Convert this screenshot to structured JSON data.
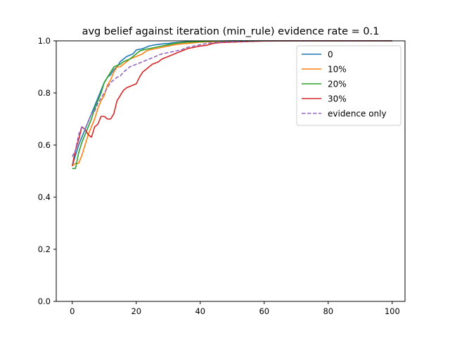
{
  "chart_data": {
    "type": "line",
    "title": "avg belief against iteration (min_rule) evidence rate = 0.1",
    "xlabel": "",
    "ylabel": "",
    "xlim": [
      -5,
      104
    ],
    "ylim": [
      0,
      1.0
    ],
    "xticks": [
      0,
      20,
      40,
      60,
      80,
      100
    ],
    "xtick_labels": [
      "0",
      "20",
      "40",
      "60",
      "80",
      "100"
    ],
    "yticks": [
      0.0,
      0.2,
      0.4,
      0.6,
      0.8,
      1.0
    ],
    "ytick_labels": [
      "0.0",
      "0.2",
      "0.4",
      "0.6",
      "0.8",
      "1.0"
    ],
    "grid": false,
    "legend_position": "upper right",
    "series": [
      {
        "name": "0",
        "color": "#1f77b4",
        "dash": "solid",
        "points": [
          [
            0,
            0.52
          ],
          [
            1,
            0.56
          ],
          [
            2,
            0.6
          ],
          [
            3,
            0.63
          ],
          [
            4,
            0.66
          ],
          [
            5,
            0.69
          ],
          [
            6,
            0.72
          ],
          [
            7,
            0.75
          ],
          [
            8,
            0.78
          ],
          [
            9,
            0.81
          ],
          [
            10,
            0.84
          ],
          [
            11,
            0.86
          ],
          [
            12,
            0.87
          ],
          [
            13,
            0.89
          ],
          [
            14,
            0.9
          ],
          [
            15,
            0.92
          ],
          [
            16,
            0.93
          ],
          [
            17,
            0.94
          ],
          [
            18,
            0.945
          ],
          [
            19,
            0.95
          ],
          [
            20,
            0.965
          ],
          [
            22,
            0.97
          ],
          [
            24,
            0.98
          ],
          [
            26,
            0.985
          ],
          [
            28,
            0.988
          ],
          [
            30,
            0.99
          ],
          [
            32,
            0.993
          ],
          [
            34,
            0.995
          ],
          [
            36,
            0.997
          ],
          [
            40,
            0.998
          ],
          [
            44,
            0.999
          ],
          [
            50,
            1.0
          ],
          [
            60,
            1.0
          ],
          [
            70,
            1.0
          ],
          [
            80,
            1.0
          ],
          [
            90,
            1.0
          ],
          [
            100,
            1.0
          ]
        ]
      },
      {
        "name": "10%",
        "color": "#ff7f0e",
        "dash": "solid",
        "points": [
          [
            0,
            0.52
          ],
          [
            1,
            0.53
          ],
          [
            2,
            0.53
          ],
          [
            3,
            0.56
          ],
          [
            4,
            0.6
          ],
          [
            5,
            0.64
          ],
          [
            6,
            0.67
          ],
          [
            7,
            0.7
          ],
          [
            8,
            0.74
          ],
          [
            9,
            0.77
          ],
          [
            10,
            0.79
          ],
          [
            11,
            0.83
          ],
          [
            12,
            0.85
          ],
          [
            13,
            0.88
          ],
          [
            14,
            0.9
          ],
          [
            15,
            0.9
          ],
          [
            16,
            0.91
          ],
          [
            17,
            0.92
          ],
          [
            18,
            0.93
          ],
          [
            19,
            0.935
          ],
          [
            20,
            0.94
          ],
          [
            21,
            0.945
          ],
          [
            22,
            0.95
          ],
          [
            23,
            0.96
          ],
          [
            24,
            0.965
          ],
          [
            26,
            0.97
          ],
          [
            28,
            0.975
          ],
          [
            30,
            0.98
          ],
          [
            32,
            0.985
          ],
          [
            34,
            0.988
          ],
          [
            36,
            0.99
          ],
          [
            40,
            0.995
          ],
          [
            44,
            0.997
          ],
          [
            50,
            0.999
          ],
          [
            60,
            1.0
          ],
          [
            70,
            1.0
          ],
          [
            80,
            1.0
          ],
          [
            90,
            1.0
          ],
          [
            100,
            1.0
          ]
        ]
      },
      {
        "name": "20%",
        "color": "#2ca02c",
        "dash": "solid",
        "points": [
          [
            0,
            0.51
          ],
          [
            1,
            0.51
          ],
          [
            2,
            0.57
          ],
          [
            3,
            0.61
          ],
          [
            4,
            0.64
          ],
          [
            5,
            0.67
          ],
          [
            6,
            0.7
          ],
          [
            7,
            0.74
          ],
          [
            8,
            0.77
          ],
          [
            9,
            0.8
          ],
          [
            10,
            0.84
          ],
          [
            11,
            0.86
          ],
          [
            12,
            0.88
          ],
          [
            13,
            0.9
          ],
          [
            14,
            0.905
          ],
          [
            15,
            0.91
          ],
          [
            16,
            0.92
          ],
          [
            17,
            0.925
          ],
          [
            18,
            0.93
          ],
          [
            19,
            0.94
          ],
          [
            20,
            0.95
          ],
          [
            21,
            0.96
          ],
          [
            22,
            0.965
          ],
          [
            24,
            0.97
          ],
          [
            26,
            0.975
          ],
          [
            28,
            0.98
          ],
          [
            30,
            0.985
          ],
          [
            32,
            0.99
          ],
          [
            34,
            0.993
          ],
          [
            36,
            0.995
          ],
          [
            40,
            0.997
          ],
          [
            44,
            0.999
          ],
          [
            50,
            1.0
          ],
          [
            60,
            1.0
          ],
          [
            70,
            1.0
          ],
          [
            80,
            1.0
          ],
          [
            90,
            1.0
          ],
          [
            100,
            1.0
          ]
        ]
      },
      {
        "name": "30%",
        "color": "#d62728",
        "dash": "solid",
        "points": [
          [
            0,
            0.52
          ],
          [
            1,
            0.58
          ],
          [
            2,
            0.62
          ],
          [
            3,
            0.67
          ],
          [
            4,
            0.66
          ],
          [
            5,
            0.64
          ],
          [
            6,
            0.63
          ],
          [
            7,
            0.67
          ],
          [
            8,
            0.68
          ],
          [
            9,
            0.71
          ],
          [
            10,
            0.71
          ],
          [
            11,
            0.7
          ],
          [
            12,
            0.7
          ],
          [
            13,
            0.72
          ],
          [
            14,
            0.77
          ],
          [
            15,
            0.79
          ],
          [
            16,
            0.81
          ],
          [
            17,
            0.82
          ],
          [
            18,
            0.825
          ],
          [
            19,
            0.83
          ],
          [
            20,
            0.835
          ],
          [
            21,
            0.86
          ],
          [
            22,
            0.88
          ],
          [
            23,
            0.89
          ],
          [
            24,
            0.9
          ],
          [
            25,
            0.91
          ],
          [
            26,
            0.915
          ],
          [
            27,
            0.92
          ],
          [
            28,
            0.93
          ],
          [
            29,
            0.935
          ],
          [
            30,
            0.94
          ],
          [
            32,
            0.95
          ],
          [
            34,
            0.96
          ],
          [
            36,
            0.97
          ],
          [
            38,
            0.975
          ],
          [
            40,
            0.98
          ],
          [
            42,
            0.983
          ],
          [
            44,
            0.99
          ],
          [
            46,
            0.993
          ],
          [
            50,
            0.995
          ],
          [
            55,
            0.997
          ],
          [
            60,
            0.999
          ],
          [
            70,
            1.0
          ],
          [
            80,
            1.0
          ],
          [
            90,
            1.0
          ],
          [
            100,
            1.0
          ]
        ]
      },
      {
        "name": "evidence only",
        "color": "#9467bd",
        "dash": "dashed",
        "points": [
          [
            0,
            0.555
          ],
          [
            1,
            0.58
          ],
          [
            2,
            0.64
          ],
          [
            3,
            0.67
          ],
          [
            4,
            0.66
          ],
          [
            5,
            0.69
          ],
          [
            6,
            0.72
          ],
          [
            7,
            0.73
          ],
          [
            8,
            0.76
          ],
          [
            9,
            0.78
          ],
          [
            10,
            0.8
          ],
          [
            11,
            0.82
          ],
          [
            12,
            0.84
          ],
          [
            13,
            0.85
          ],
          [
            14,
            0.86
          ],
          [
            15,
            0.865
          ],
          [
            16,
            0.88
          ],
          [
            17,
            0.89
          ],
          [
            18,
            0.9
          ],
          [
            19,
            0.905
          ],
          [
            20,
            0.91
          ],
          [
            21,
            0.915
          ],
          [
            22,
            0.92
          ],
          [
            23,
            0.925
          ],
          [
            24,
            0.93
          ],
          [
            26,
            0.94
          ],
          [
            28,
            0.95
          ],
          [
            30,
            0.955
          ],
          [
            32,
            0.96
          ],
          [
            34,
            0.965
          ],
          [
            36,
            0.975
          ],
          [
            38,
            0.98
          ],
          [
            40,
            0.985
          ],
          [
            42,
            0.99
          ],
          [
            44,
            0.993
          ],
          [
            48,
            0.996
          ],
          [
            55,
            0.998
          ],
          [
            60,
            1.0
          ],
          [
            70,
            1.0
          ],
          [
            80,
            1.0
          ],
          [
            90,
            1.0
          ],
          [
            100,
            1.0
          ]
        ]
      }
    ]
  }
}
